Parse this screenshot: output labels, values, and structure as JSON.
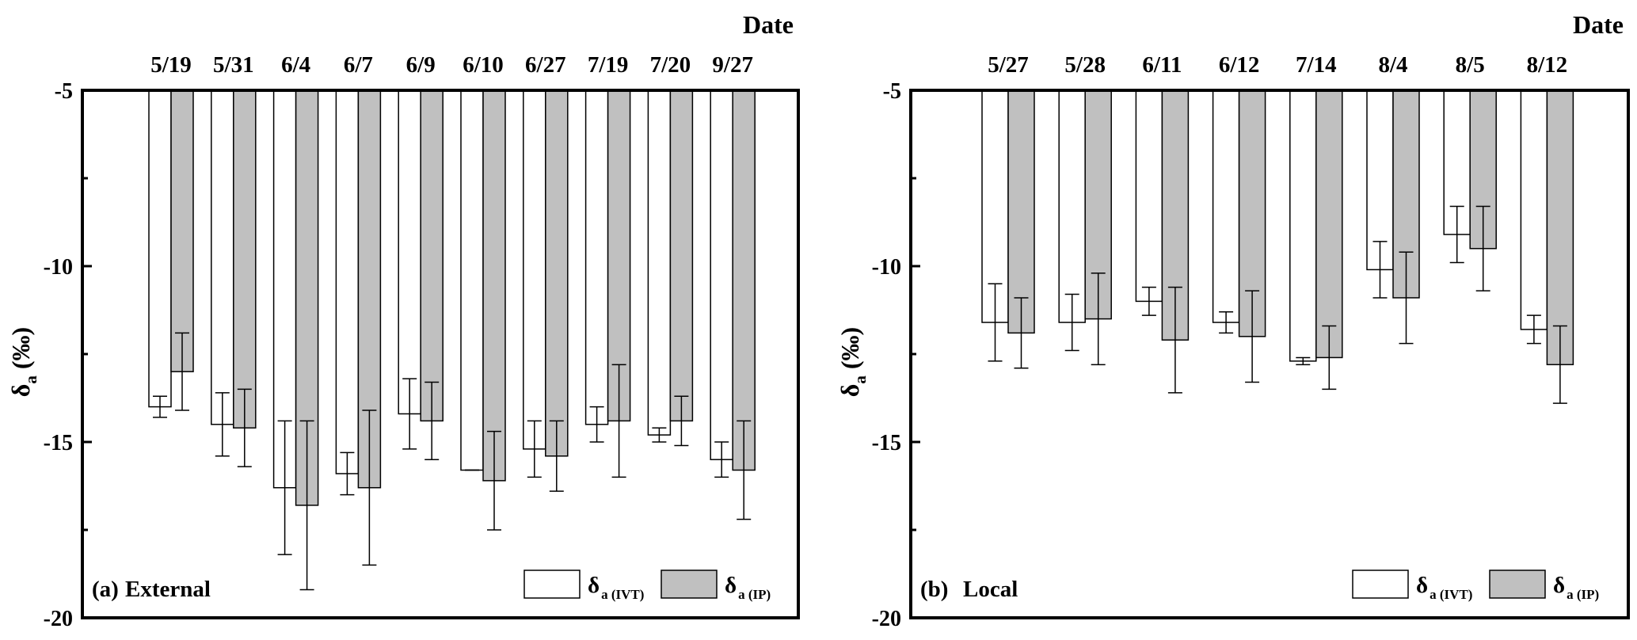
{
  "chart_data": [
    {
      "type": "bar",
      "panel_label": "(a)",
      "panel_name": "External",
      "xlabel": "Date",
      "ylabel": "δa (‰)",
      "ylabel_main": "δ",
      "ylabel_sub": "a",
      "ylabel_unit": "(‰)",
      "ylim": [
        -20,
        -5
      ],
      "yticks": [
        -5,
        -10,
        -15,
        -20
      ],
      "categories": [
        "5/19",
        "5/31",
        "6/4",
        "6/7",
        "6/9",
        "6/10",
        "6/27",
        "7/19",
        "7/20",
        "9/27"
      ],
      "series": [
        {
          "name": "δa (IVT)",
          "name_main": "δ",
          "name_sub": "a (IVT)",
          "fill": "#ffffff",
          "values": [
            -14.0,
            -14.5,
            -16.3,
            -15.9,
            -14.2,
            -15.8,
            -15.2,
            -14.5,
            -14.8,
            -15.5
          ],
          "errors": [
            0.3,
            0.9,
            1.9,
            0.6,
            1.0,
            0.0,
            0.8,
            0.5,
            0.2,
            0.5
          ]
        },
        {
          "name": "δa (IP)",
          "name_main": "δ",
          "name_sub": "a (IP)",
          "fill": "#c0c0c0",
          "values": [
            -13.0,
            -14.6,
            -16.8,
            -16.3,
            -14.4,
            -16.1,
            -15.4,
            -14.4,
            -14.4,
            -15.8
          ],
          "errors": [
            1.1,
            1.1,
            2.4,
            2.2,
            1.1,
            1.4,
            1.0,
            1.6,
            0.7,
            1.4
          ]
        }
      ],
      "legend_position": "bottom-right",
      "grid": false
    },
    {
      "type": "bar",
      "panel_label": "(b)",
      "panel_name": "Local",
      "xlabel": "Date",
      "ylabel": "δa (‰)",
      "ylabel_main": "δ",
      "ylabel_sub": "a",
      "ylabel_unit": "(‰)",
      "ylim": [
        -20,
        -5
      ],
      "yticks": [
        -5,
        -10,
        -15,
        -20
      ],
      "categories": [
        "5/27",
        "5/28",
        "6/11",
        "6/12",
        "7/14",
        "8/4",
        "8/5",
        "8/12"
      ],
      "series": [
        {
          "name": "δa (IVT)",
          "name_main": "δ",
          "name_sub": "a (IVT)",
          "fill": "#ffffff",
          "values": [
            -11.6,
            -11.6,
            -11.0,
            -11.6,
            -12.7,
            -10.1,
            -9.1,
            -11.8
          ],
          "errors": [
            1.1,
            0.8,
            0.4,
            0.3,
            0.1,
            0.8,
            0.8,
            0.4
          ]
        },
        {
          "name": "δa (IP)",
          "name_main": "δ",
          "name_sub": "a (IP)",
          "fill": "#c0c0c0",
          "values": [
            -11.9,
            -11.5,
            -12.1,
            -12.0,
            -12.6,
            -10.9,
            -9.5,
            -12.8
          ],
          "errors": [
            1.0,
            1.3,
            1.5,
            1.3,
            0.9,
            1.3,
            1.2,
            1.1
          ]
        }
      ],
      "legend_position": "bottom-right",
      "grid": false
    }
  ]
}
